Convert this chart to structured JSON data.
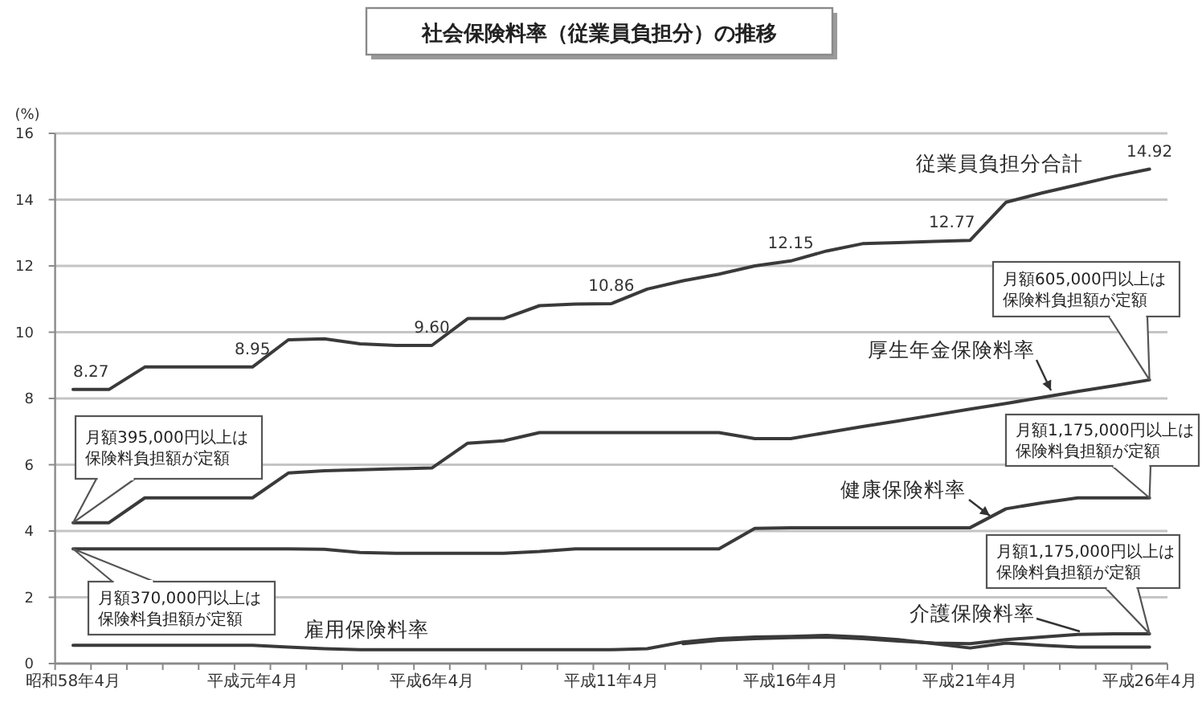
{
  "chart_data": {
    "type": "line",
    "title": "社会保険料率（従業員負担分）の推移",
    "ylabel": "(%)",
    "categories": [
      "昭和58年4月",
      null,
      null,
      null,
      null,
      "平成元年4月",
      null,
      null,
      null,
      null,
      "平成6年4月",
      null,
      null,
      null,
      null,
      "平成11年4月",
      null,
      null,
      null,
      null,
      "平成16年4月",
      null,
      null,
      null,
      null,
      "平成21年4月",
      null,
      null,
      null,
      null,
      "平成26年4月"
    ],
    "ylim": [
      0,
      16
    ],
    "yticks": [
      0,
      2,
      4,
      6,
      8,
      10,
      12,
      14,
      16
    ],
    "grid": "y",
    "line_style": "solid",
    "series": [
      {
        "name": "従業員負担分合計",
        "color": "#3a3a3a",
        "values": [
          8.27,
          8.27,
          8.95,
          8.95,
          8.95,
          8.95,
          9.77,
          9.8,
          9.65,
          9.6,
          9.6,
          10.41,
          10.41,
          10.8,
          10.85,
          10.86,
          11.3,
          11.55,
          11.75,
          12.0,
          12.15,
          12.45,
          12.67,
          12.7,
          12.74,
          12.77,
          13.92,
          14.2,
          14.45,
          14.7,
          14.92
        ],
        "value_labels": [
          "8.27",
          null,
          null,
          null,
          null,
          "8.95",
          null,
          null,
          null,
          null,
          "9.60",
          null,
          null,
          null,
          null,
          "10.86",
          null,
          null,
          null,
          null,
          "12.15",
          null,
          null,
          null,
          null,
          "12.77",
          null,
          null,
          null,
          null,
          "14.92"
        ]
      },
      {
        "name": "厚生年金保険料率",
        "color": "#3a3a3a",
        "values": [
          4.25,
          4.25,
          5.0,
          5.0,
          5.0,
          5.0,
          5.75,
          5.82,
          5.85,
          5.88,
          5.9,
          6.65,
          6.72,
          6.97,
          6.97,
          6.97,
          6.97,
          6.97,
          6.97,
          6.79,
          6.79,
          6.97,
          7.15,
          7.32,
          7.5,
          7.68,
          7.85,
          8.03,
          8.21,
          8.38,
          8.56
        ]
      },
      {
        "name": "健康保険料率",
        "color": "#3a3a3a",
        "values": [
          3.46,
          3.46,
          3.46,
          3.46,
          3.46,
          3.46,
          3.46,
          3.45,
          3.35,
          3.33,
          3.33,
          3.33,
          3.33,
          3.38,
          3.46,
          3.46,
          3.46,
          3.46,
          3.46,
          4.08,
          4.1,
          4.1,
          4.1,
          4.1,
          4.1,
          4.1,
          4.67,
          4.85,
          5.0,
          5.0,
          5.0
        ]
      },
      {
        "name": "介護保険料率",
        "color": "#3a3a3a",
        "values": [
          null,
          null,
          null,
          null,
          null,
          null,
          null,
          null,
          null,
          null,
          null,
          null,
          null,
          null,
          null,
          null,
          null,
          0.6,
          0.7,
          0.75,
          0.78,
          0.8,
          0.75,
          0.68,
          0.62,
          0.6,
          0.72,
          0.8,
          0.88,
          0.9,
          0.9
        ]
      },
      {
        "name": "雇用保険料率",
        "color": "#3a3a3a",
        "values": [
          0.55,
          0.55,
          0.55,
          0.55,
          0.55,
          0.55,
          0.5,
          0.45,
          0.42,
          0.42,
          0.42,
          0.42,
          0.42,
          0.42,
          0.42,
          0.42,
          0.45,
          0.65,
          0.75,
          0.8,
          0.82,
          0.85,
          0.8,
          0.72,
          0.6,
          0.47,
          0.62,
          0.55,
          0.5,
          0.5,
          0.5
        ]
      }
    ],
    "annotations": [
      "月額395,000円以上は保険料負担額が定額",
      "月額370,000円以上は保険料負担額が定額",
      "月額605,000円以上は保険料負担額が定額",
      "月額1,175,000円以上は保険料負担額が定額",
      "月額1,175,000円以上は保険料負担額が定額"
    ]
  }
}
